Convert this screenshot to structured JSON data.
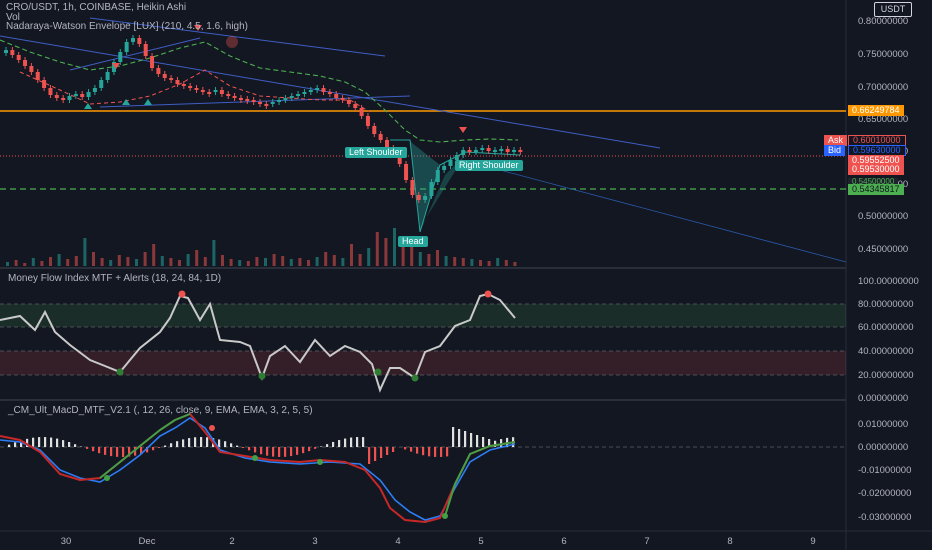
{
  "header": {
    "symbol_line": "CRO/USDT, 1h, COINBASE, Heikin Ashi",
    "vol_label": "Vol",
    "envelope_label": "Nadaraya-Watson Envelope [LUX] (210, 4.5, 1.6, high)",
    "currency_button": "USDT"
  },
  "pane2": {
    "title": "Money Flow Index MTF + Alerts (18, 24, 84, 1D)"
  },
  "pane3": {
    "title": "_CM_Ult_MacD_MTF_V2.1 (, 12, 26, close, 9, EMA, EMA, 3, 2, 5, 5)"
  },
  "price_axis": [
    "0.80000000",
    "0.75000000",
    "0.70000000",
    "0.65000000",
    "0.60000000",
    "0.55000000",
    "0.50000000",
    "0.45000000"
  ],
  "mfi_axis": [
    "100.00000000",
    "80.00000000",
    "60.00000000",
    "40.00000000",
    "20.00000000",
    "0.00000000"
  ],
  "macd_axis": [
    "0.01000000",
    "0.00000000",
    "-0.01000000",
    "-0.02000000",
    "-0.03000000"
  ],
  "time_axis": [
    "30",
    "Dec",
    "2",
    "3",
    "4",
    "5",
    "6",
    "7",
    "8",
    "9"
  ],
  "price_tags": {
    "orange_level": "0.66249784",
    "ask_label": "Ask",
    "ask_value": "0.60010000",
    "bid_label": "Bid",
    "bid_value": "0.59630000",
    "last_value": "0.59552500",
    "last2_value": "0.59530000",
    "support_value": "0.54345817",
    "support_hidden": "0.54500000"
  },
  "pattern_labels": {
    "left_shoulder": "Left Shoulder",
    "right_shoulder": "Right Shoulder",
    "head": "Head"
  },
  "colors": {
    "background": "#131722",
    "up": "#26a69a",
    "down": "#ef5350",
    "orange": "#ff9800",
    "green_dash": "#4caf50",
    "blue_line": "#3f5ec4",
    "mfi_line": "#c9c9c9",
    "ask": "#ef5350",
    "bid": "#2962ff"
  }
}
